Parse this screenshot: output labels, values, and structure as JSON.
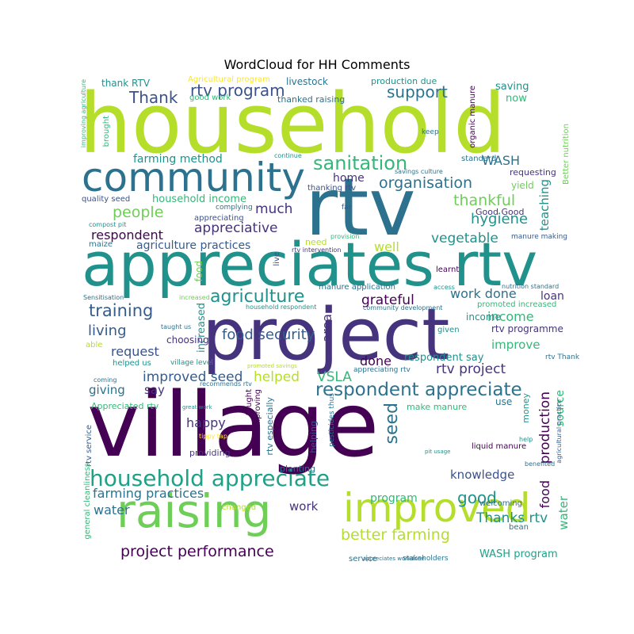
{
  "title": "WordCloud for HH Comments",
  "palette": {
    "dark_purple": "#440154",
    "purple": "#46337e",
    "indigo": "#3b528b",
    "blue": "#365c8d",
    "teal_blue": "#2c728e",
    "teal": "#21918c",
    "green_teal": "#1fa187",
    "green": "#35b779",
    "light_green": "#6ece58",
    "yellow_green": "#b5de2b",
    "yellow": "#fde725"
  },
  "words": [
    {
      "text": "household",
      "color": "#b5de2b"
    },
    {
      "text": "village",
      "color": "#440154"
    },
    {
      "text": "rtv",
      "color": "#2c728e"
    },
    {
      "text": "appreciates rtv",
      "color": "#21918c"
    },
    {
      "text": "project",
      "color": "#46337e"
    },
    {
      "text": "community",
      "color": "#2c728e"
    },
    {
      "text": "raising",
      "color": "#6ece58"
    },
    {
      "text": "improved",
      "color": "#b5de2b"
    },
    {
      "text": "household appreciate",
      "color": "#1fa187"
    },
    {
      "text": "respondent appreciate",
      "color": "#2c728e"
    },
    {
      "text": "sanitation",
      "color": "#35b779"
    },
    {
      "text": "agriculture",
      "color": "#21918c"
    },
    {
      "text": "training",
      "color": "#365c8d"
    },
    {
      "text": "rtv program",
      "color": "#3b528b"
    },
    {
      "text": "support",
      "color": "#2c728e"
    },
    {
      "text": "Thank",
      "color": "#3b528b"
    },
    {
      "text": "organisation",
      "color": "#2c728e"
    },
    {
      "text": "people",
      "color": "#6ece58"
    },
    {
      "text": "much",
      "color": "#46337e"
    },
    {
      "text": "thankful",
      "color": "#6ece58"
    },
    {
      "text": "hygiene",
      "color": "#21918c"
    },
    {
      "text": "appreciative",
      "color": "#46337e"
    },
    {
      "text": "respondent",
      "color": "#440154"
    },
    {
      "text": "vegetable",
      "color": "#21918c"
    },
    {
      "text": "farming method",
      "color": "#21918c"
    },
    {
      "text": "WASH",
      "color": "#2c728e"
    },
    {
      "text": "home",
      "color": "#46337e"
    },
    {
      "text": "teaching",
      "color": "#21918c"
    },
    {
      "text": "household income",
      "color": "#35b779"
    },
    {
      "text": "agriculture practices",
      "color": "#365c8d"
    },
    {
      "text": "well",
      "color": "#b5de2b"
    },
    {
      "text": "work done",
      "color": "#2c728e"
    },
    {
      "text": "loan",
      "color": "#46337e"
    },
    {
      "text": "income",
      "color": "#35b779"
    },
    {
      "text": "grateful",
      "color": "#440154"
    },
    {
      "text": "living",
      "color": "#365c8d"
    },
    {
      "text": "request",
      "color": "#3b528b"
    },
    {
      "text": "area",
      "color": "#46337e"
    },
    {
      "text": "improve",
      "color": "#35b779"
    },
    {
      "text": "food security",
      "color": "#365c8d"
    },
    {
      "text": "done",
      "color": "#440154"
    },
    {
      "text": "improved seed",
      "color": "#365c8d"
    },
    {
      "text": "helped",
      "color": "#b5de2b"
    },
    {
      "text": "VSLA",
      "color": "#35b779"
    },
    {
      "text": "rtv project",
      "color": "#46337e"
    },
    {
      "text": "respondent say",
      "color": "#21918c"
    },
    {
      "text": "giving",
      "color": "#2c728e"
    },
    {
      "text": "say",
      "color": "#46337e"
    },
    {
      "text": "happy",
      "color": "#46337e"
    },
    {
      "text": "seed",
      "color": "#2c728e"
    },
    {
      "text": "production",
      "color": "#440154"
    },
    {
      "text": "source",
      "color": "#35b779"
    },
    {
      "text": "knowledge",
      "color": "#3b528b"
    },
    {
      "text": "farming practices",
      "color": "#2c728e"
    },
    {
      "text": "water",
      "color": "#2c728e"
    },
    {
      "text": "work",
      "color": "#46337e"
    },
    {
      "text": "program",
      "color": "#35b779"
    },
    {
      "text": "good",
      "color": "#21918c"
    },
    {
      "text": "food",
      "color": "#440154"
    },
    {
      "text": "water",
      "color": "#35b779"
    },
    {
      "text": "Thanks rtv",
      "color": "#21918c"
    },
    {
      "text": "better farming",
      "color": "#b5de2b"
    },
    {
      "text": "project performance",
      "color": "#440154"
    },
    {
      "text": "WASH program",
      "color": "#1fa187"
    },
    {
      "text": "income",
      "color": "#21918c"
    },
    {
      "text": "rtv programme",
      "color": "#46337e"
    },
    {
      "text": "thank RTV",
      "color": "#21918c"
    },
    {
      "text": "livestock",
      "color": "#2c728e"
    },
    {
      "text": "production due",
      "color": "#21918c"
    },
    {
      "text": "saving",
      "color": "#21918c"
    },
    {
      "text": "now",
      "color": "#35b779"
    },
    {
      "text": "Agricultural program",
      "color": "#fde725"
    },
    {
      "text": "good work",
      "color": "#35b779"
    },
    {
      "text": "thanked raising",
      "color": "#2c728e"
    },
    {
      "text": "organic manure",
      "color": "#440154"
    },
    {
      "text": "improving agriculture",
      "color": "#35b779"
    },
    {
      "text": "brought",
      "color": "#35b779"
    },
    {
      "text": "keep",
      "color": "#2c728e"
    },
    {
      "text": "Better nutrition",
      "color": "#6ece58"
    },
    {
      "text": "continue",
      "color": "#21918c"
    },
    {
      "text": "savings culture",
      "color": "#2c728e"
    },
    {
      "text": "standard",
      "color": "#2c728e"
    },
    {
      "text": "requesting",
      "color": "#46337e"
    },
    {
      "text": "yield",
      "color": "#6ece58"
    },
    {
      "text": "thanking rtv",
      "color": "#3b528b"
    },
    {
      "text": "quality seed",
      "color": "#3b528b"
    },
    {
      "text": "far",
      "color": "#365c8d"
    },
    {
      "text": "Good Good",
      "color": "#46337e"
    },
    {
      "text": "complying",
      "color": "#2c728e"
    },
    {
      "text": "appreciating",
      "color": "#3b528b"
    },
    {
      "text": "compost pit",
      "color": "#21918c"
    },
    {
      "text": "maize",
      "color": "#2c728e"
    },
    {
      "text": "manure making",
      "color": "#365c8d"
    },
    {
      "text": "need",
      "color": "#b5de2b"
    },
    {
      "text": "provision",
      "color": "#35b779"
    },
    {
      "text": "rtv intervention",
      "color": "#46337e"
    },
    {
      "text": "learnt",
      "color": "#440154"
    },
    {
      "text": "live",
      "color": "#3b528b"
    },
    {
      "text": "food",
      "color": "#6ece58"
    },
    {
      "text": "manure application",
      "color": "#2c728e"
    },
    {
      "text": "access",
      "color": "#21918c"
    },
    {
      "text": "nutrition standard",
      "color": "#2c728e"
    },
    {
      "text": "Sensitisation",
      "color": "#2c728e"
    },
    {
      "text": "increased",
      "color": "#6ece58"
    },
    {
      "text": "increased",
      "color": "#21918c"
    },
    {
      "text": "household respondent",
      "color": "#21918c"
    },
    {
      "text": "community development",
      "color": "#2c728e"
    },
    {
      "text": "promoted increased",
      "color": "#35b779"
    },
    {
      "text": "taught us",
      "color": "#2c728e"
    },
    {
      "text": "given",
      "color": "#21918c"
    },
    {
      "text": "choosing",
      "color": "#46337e"
    },
    {
      "text": "able",
      "color": "#b5de2b"
    },
    {
      "text": "helped us",
      "color": "#21918c"
    },
    {
      "text": "village level",
      "color": "#21918c"
    },
    {
      "text": "promoted savings",
      "color": "#b5de2b"
    },
    {
      "text": "appreciating rtv",
      "color": "#2c728e"
    },
    {
      "text": "rtv Thank",
      "color": "#2c728e"
    },
    {
      "text": "coming",
      "color": "#2c728e"
    },
    {
      "text": "recommends rtv",
      "color": "#2c728e"
    },
    {
      "text": "Appreciated rtv",
      "color": "#35b779"
    },
    {
      "text": "great work",
      "color": "#21918c"
    },
    {
      "text": "taught",
      "color": "#440154"
    },
    {
      "text": "thus improving",
      "color": "#440154"
    },
    {
      "text": "rtv especially",
      "color": "#2c728e"
    },
    {
      "text": "helping",
      "color": "#3b528b"
    },
    {
      "text": "pesticides thus",
      "color": "#2c728e"
    },
    {
      "text": "make manure",
      "color": "#35b779"
    },
    {
      "text": "use",
      "color": "#2c728e"
    },
    {
      "text": "money",
      "color": "#21918c"
    },
    {
      "text": "agricultural practice",
      "color": "#365c8d"
    },
    {
      "text": "rtv service",
      "color": "#365c8d"
    },
    {
      "text": "tippy tap",
      "color": "#fde725"
    },
    {
      "text": "help",
      "color": "#21918c"
    },
    {
      "text": "pit usage",
      "color": "#21918c"
    },
    {
      "text": "liquid manure",
      "color": "#440154"
    },
    {
      "text": "providing",
      "color": "#46337e"
    },
    {
      "text": "benefited",
      "color": "#2c728e"
    },
    {
      "text": "general cleanliness",
      "color": "#35b779"
    },
    {
      "text": "planting",
      "color": "#2c728e"
    },
    {
      "text": "welcoming",
      "color": "#2c728e"
    },
    {
      "text": "changed",
      "color": "#b5de2b"
    },
    {
      "text": "bean",
      "color": "#2c728e"
    },
    {
      "text": "service",
      "color": "#2c728e"
    },
    {
      "text": "stakeholders",
      "color": "#2c728e"
    },
    {
      "text": "appreciates workdone",
      "color": "#2c728e"
    }
  ]
}
